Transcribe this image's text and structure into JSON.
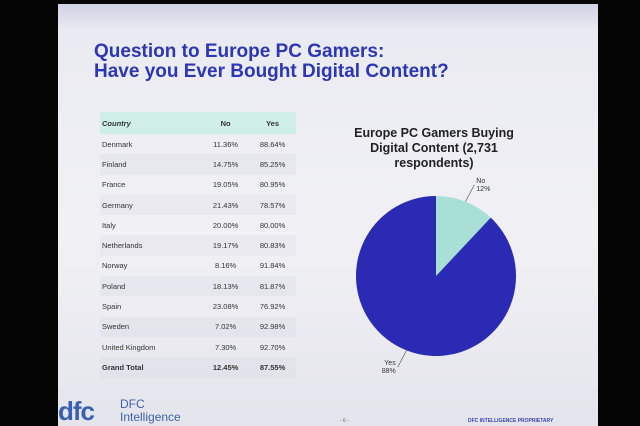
{
  "slide": {
    "title_line1": "Question to Europe PC Gamers:",
    "title_line2": "Have you Ever Bought Digital Content?",
    "page_number": "- 6 -",
    "footer": "DFC INTELLIGENCE PROPRIETARY"
  },
  "logo": {
    "mark": "dfc",
    "line1": "DFC",
    "line2": "Intelligence"
  },
  "colors": {
    "title": "#2b36b8",
    "pie_yes": "#2a2ab4",
    "pie_no": "#a8e0d6",
    "table_header": "#cfeee7"
  },
  "chart_data": [
    {
      "type": "table",
      "columns": [
        "Country",
        "No",
        "Yes"
      ],
      "rows": [
        [
          "Denmark",
          "11.36%",
          "88.64%"
        ],
        [
          "Finland",
          "14.75%",
          "85.25%"
        ],
        [
          "France",
          "19.05%",
          "80.95%"
        ],
        [
          "Germany",
          "21.43%",
          "78.57%"
        ],
        [
          "Italy",
          "20.00%",
          "80.00%"
        ],
        [
          "Netherlands",
          "19.17%",
          "80.83%"
        ],
        [
          "Norway",
          "8.16%",
          "91.84%"
        ],
        [
          "Poland",
          "18.13%",
          "81.87%"
        ],
        [
          "Spain",
          "23.08%",
          "76.92%"
        ],
        [
          "Sweden",
          "7.02%",
          "92.98%"
        ],
        [
          "United Kingdom",
          "7.30%",
          "92.70%"
        ]
      ],
      "total": [
        "Grand Total",
        "12.45%",
        "87.55%"
      ]
    },
    {
      "type": "pie",
      "title_line1": "Europe PC Gamers Buying",
      "title_line2": "Digital Content (2,731",
      "title_line3": "respondents)",
      "slices": [
        {
          "label": "No",
          "value": 12,
          "value_label": "12%",
          "color": "#a8e0d6"
        },
        {
          "label": "Yes",
          "value": 88,
          "value_label": "88%",
          "color": "#2a2ab4"
        }
      ]
    }
  ]
}
